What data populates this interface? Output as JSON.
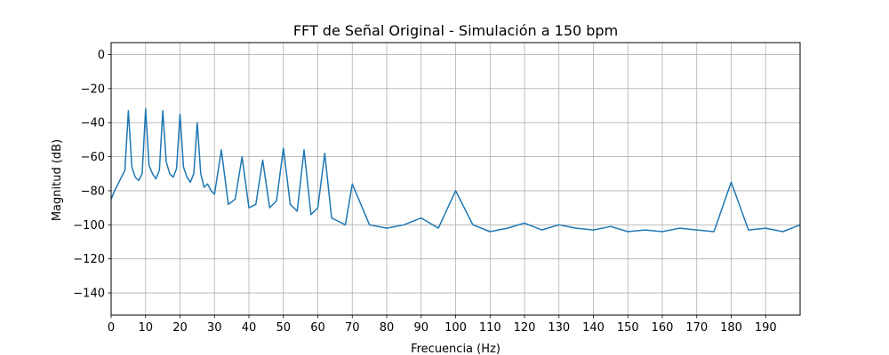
{
  "chart_data": {
    "type": "line",
    "title": "FFT de Señal Original - Simulación a 150 bpm",
    "xlabel": "Frecuencia (Hz)",
    "ylabel": "Magnitud (dB)",
    "xlim": [
      0,
      200
    ],
    "ylim": [
      -153,
      7
    ],
    "xticks": [
      0,
      10,
      20,
      30,
      40,
      50,
      60,
      70,
      80,
      90,
      100,
      110,
      120,
      130,
      140,
      150,
      160,
      170,
      180,
      190
    ],
    "yticks": [
      0,
      -20,
      -40,
      -60,
      -80,
      -100,
      -120,
      -140
    ],
    "grid": true,
    "series_color": "#1f77b4",
    "series": [
      {
        "x": [
          0,
          1,
          2,
          3,
          4,
          5,
          6,
          7,
          8,
          9,
          10,
          11,
          12,
          13,
          14,
          15,
          16,
          17,
          18,
          19,
          20,
          21,
          22,
          23,
          24,
          25,
          26,
          27,
          28,
          29,
          30,
          32,
          34,
          36,
          38,
          40,
          42,
          44,
          46,
          48,
          50,
          52,
          54,
          56,
          58,
          60,
          62,
          64,
          66,
          68,
          70,
          75,
          80,
          85,
          90,
          95,
          100,
          105,
          110,
          115,
          120,
          125,
          130,
          135,
          140,
          145,
          150,
          155,
          160,
          165,
          170,
          175,
          180,
          185,
          190,
          195,
          200
        ],
        "y": [
          -85,
          -80,
          -76,
          -72,
          -68,
          -33,
          -66,
          -72,
          -74,
          -70,
          -32,
          -65,
          -70,
          -73,
          -68,
          -33,
          -63,
          -70,
          -72,
          -67,
          -35,
          -66,
          -72,
          -75,
          -70,
          -40,
          -70,
          -78,
          -76,
          -80,
          -82,
          -56,
          -88,
          -85,
          -60,
          -90,
          -88,
          -62,
          -90,
          -86,
          -55,
          -88,
          -92,
          -56,
          -94,
          -90,
          -58,
          -96,
          -98,
          -100,
          -76,
          -100,
          -102,
          -100,
          -96,
          -102,
          -80,
          -100,
          -104,
          -102,
          -99,
          -103,
          -100,
          -102,
          -103,
          -101,
          -104,
          -103,
          -104,
          -102,
          -103,
          -104,
          -75,
          -103,
          -102,
          -104,
          -100
        ]
      }
    ]
  }
}
